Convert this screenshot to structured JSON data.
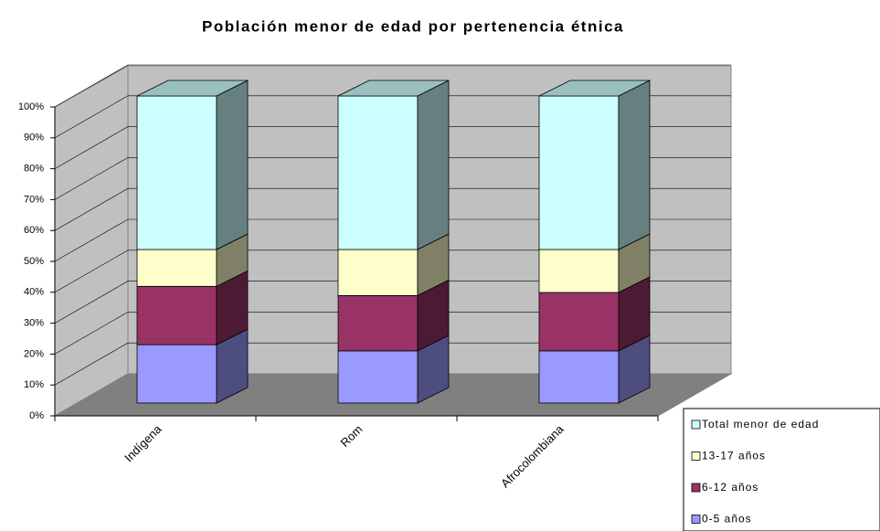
{
  "chart_data": {
    "type": "bar3d_stacked",
    "title": "Población menor de edad por pertenencia étnica",
    "categories": [
      "Indígena",
      "Rom",
      "Afrocolombiana"
    ],
    "series": [
      {
        "name": "0-5 años",
        "color": "#9999ff",
        "values": [
          19,
          17,
          17
        ]
      },
      {
        "name": "6-12 años",
        "color": "#993366",
        "values": [
          19,
          18,
          19
        ]
      },
      {
        "name": "13-17 años",
        "color": "#ffffcc",
        "values": [
          12,
          15,
          14
        ]
      },
      {
        "name": "Total menor de edad",
        "color": "#ccffff",
        "values": [
          50,
          50,
          50
        ]
      }
    ],
    "ylim": [
      0,
      100
    ],
    "yticks": [
      {
        "value": 0,
        "label": "0%"
      },
      {
        "value": 10,
        "label": "10%"
      },
      {
        "value": 20,
        "label": "20%"
      },
      {
        "value": 30,
        "label": "30%"
      },
      {
        "value": 40,
        "label": "40%"
      },
      {
        "value": 50,
        "label": "50%"
      },
      {
        "value": 60,
        "label": "60%"
      },
      {
        "value": 70,
        "label": "70%"
      },
      {
        "value": 80,
        "label": "80%"
      },
      {
        "value": 90,
        "label": "90%"
      },
      {
        "value": 100,
        "label": "100%"
      }
    ],
    "grid": true,
    "legend": "bottom-right"
  }
}
